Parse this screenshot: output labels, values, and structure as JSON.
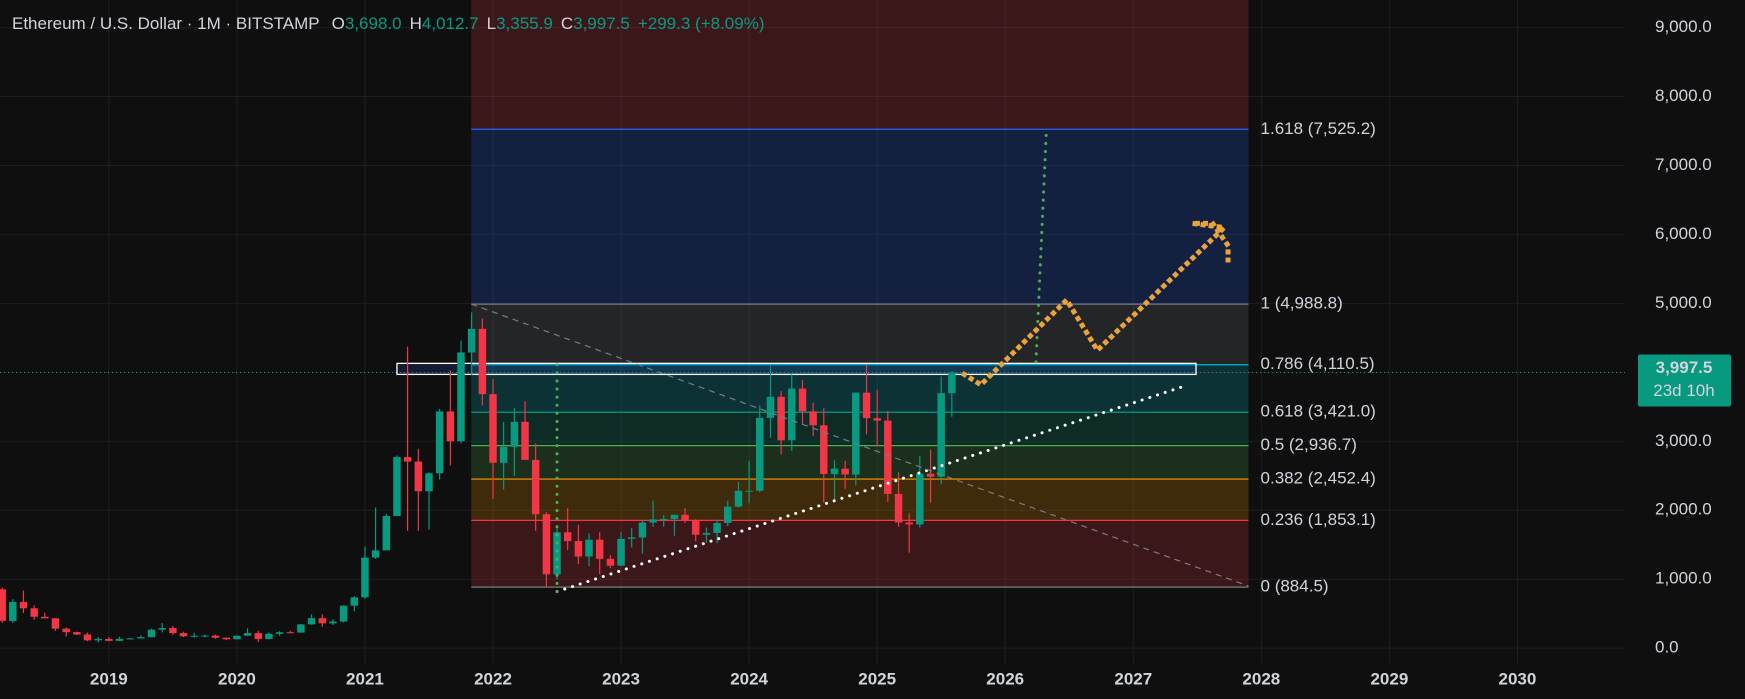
{
  "chart_data": {
    "type": "candlestick",
    "header": {
      "title": "Ethereum / U.S. Dollar · 1M · BITSTAMP",
      "items": [
        {
          "key": "O",
          "value": "3,698.0"
        },
        {
          "key": "H",
          "value": "4,012.7"
        },
        {
          "key": "L",
          "value": "3,355.9"
        },
        {
          "key": "C",
          "value": "3,997.5"
        }
      ],
      "change": "+299.3 (+8.09%)"
    },
    "up_color": "#089981",
    "down_color": "#f23645",
    "x": [
      2018.167,
      2018.25,
      2018.333,
      2018.417,
      2018.5,
      2018.583,
      2018.667,
      2018.75,
      2018.833,
      2018.917,
      2019,
      2019.083,
      2019.167,
      2019.25,
      2019.333,
      2019.417,
      2019.5,
      2019.583,
      2019.667,
      2019.75,
      2019.833,
      2019.917,
      2020,
      2020.083,
      2020.167,
      2020.25,
      2020.333,
      2020.417,
      2020.5,
      2020.583,
      2020.667,
      2020.75,
      2020.833,
      2020.917,
      2021,
      2021.083,
      2021.167,
      2021.25,
      2021.333,
      2021.417,
      2021.5,
      2021.583,
      2021.667,
      2021.75,
      2021.833,
      2021.917,
      2022,
      2022.083,
      2022.167,
      2022.25,
      2022.333,
      2022.417,
      2022.5,
      2022.583,
      2022.667,
      2022.75,
      2022.833,
      2022.917,
      2023,
      2023.083,
      2023.167,
      2023.25,
      2023.333,
      2023.417,
      2023.5,
      2023.583,
      2023.667,
      2023.75,
      2023.833,
      2023.917,
      2024,
      2024.083,
      2024.167,
      2024.25,
      2024.333,
      2024.417,
      2024.5,
      2024.583,
      2024.667,
      2024.75,
      2024.833,
      2024.917,
      2025,
      2025.083,
      2025.167,
      2025.25,
      2025.333,
      2025.417,
      2025.5,
      2025.583
    ],
    "open": [
      853,
      395,
      670,
      578,
      455,
      433,
      283,
      232,
      198,
      113,
      133,
      106,
      135,
      141,
      160,
      268,
      291,
      218,
      172,
      180,
      182,
      151,
      129,
      180,
      218,
      133,
      207,
      231,
      226,
      345,
      435,
      360,
      386,
      616,
      737,
      1313,
      1418,
      1917,
      2771,
      2706,
      2275,
      2536,
      3433,
      3000,
      4288,
      4630,
      3683,
      2688,
      2920,
      3282,
      2730,
      1942,
      1070,
      1680,
      1553,
      1328,
      1573,
      1295,
      1196,
      1585,
      1605,
      1822,
      1868,
      1874,
      1934,
      1857,
      1645,
      1671,
      1815,
      2052,
      2282,
      2283,
      3340,
      3645,
      3015,
      3764,
      3435,
      3232,
      2525,
      2603,
      2518,
      3705,
      3335,
      3300,
      2237,
      1822,
      1794,
      2530,
      2486,
      3698
    ],
    "high": [
      880,
      710,
      835,
      620,
      515,
      435,
      300,
      240,
      225,
      160,
      160,
      166,
      148,
      185,
      285,
      364,
      320,
      239,
      224,
      198,
      195,
      153,
      185,
      288,
      253,
      228,
      246,
      254,
      348,
      490,
      490,
      420,
      620,
      755,
      1475,
      2040,
      1950,
      2795,
      4375,
      2890,
      2550,
      3470,
      4030,
      4460,
      4870,
      4780,
      3900,
      3280,
      3480,
      3580,
      2970,
      1970,
      1780,
      2030,
      1790,
      1665,
      1680,
      1350,
      1680,
      1740,
      1850,
      2140,
      1930,
      1930,
      2030,
      1870,
      1750,
      1865,
      2140,
      2410,
      2720,
      3520,
      4095,
      3730,
      3975,
      3890,
      3560,
      3480,
      2725,
      2720,
      3690,
      4110,
      3745,
      3440,
      2550,
      1955,
      2790,
      2880,
      3940,
      4012.7
    ],
    "low": [
      366,
      366,
      510,
      410,
      430,
      250,
      168,
      190,
      101,
      81,
      100,
      102,
      128,
      140,
      157,
      228,
      190,
      162,
      152,
      155,
      137,
      117,
      125,
      177,
      90,
      127,
      178,
      215,
      224,
      338,
      308,
      335,
      373,
      535,
      715,
      1294,
      1426,
      1935,
      1700,
      1700,
      1718,
      2445,
      2650,
      2970,
      3960,
      3520,
      2160,
      2300,
      2500,
      2780,
      1700,
      880,
      1000,
      1420,
      1220,
      1190,
      1075,
      1160,
      1190,
      1460,
      1370,
      1760,
      1760,
      1630,
      1810,
      1550,
      1530,
      1520,
      1770,
      2040,
      2100,
      2260,
      3050,
      2810,
      2860,
      3240,
      3080,
      2110,
      2150,
      2310,
      2360,
      3100,
      2920,
      2120,
      1760,
      1385,
      1750,
      2110,
      2375,
      3355.9
    ],
    "close": [
      395,
      670,
      578,
      455,
      433,
      283,
      232,
      198,
      113,
      133,
      106,
      135,
      141,
      160,
      268,
      291,
      218,
      172,
      180,
      182,
      151,
      129,
      180,
      218,
      133,
      207,
      231,
      226,
      345,
      435,
      360,
      386,
      616,
      737,
      1313,
      1418,
      1917,
      2771,
      2706,
      2275,
      2536,
      3433,
      3000,
      4288,
      4630,
      3683,
      2688,
      2920,
      3282,
      2730,
      1942,
      1070,
      1680,
      1553,
      1328,
      1573,
      1295,
      1196,
      1585,
      1605,
      1822,
      1868,
      1874,
      1934,
      1857,
      1645,
      1671,
      1815,
      2052,
      2282,
      2283,
      3340,
      3645,
      3015,
      3764,
      3435,
      3232,
      2525,
      2603,
      2518,
      3705,
      3335,
      3300,
      2237,
      1822,
      1794,
      2530,
      2486,
      3698,
      3997.5
    ],
    "xlim": [
      2018.15,
      2030.84
    ],
    "xticks": [
      2019,
      2020,
      2021,
      2022,
      2023,
      2024,
      2025,
      2026,
      2027,
      2028,
      2029,
      2030
    ],
    "ylim": [
      -230,
      9400
    ],
    "yticks": [
      {
        "value": 0,
        "label": "0.0"
      },
      {
        "value": 1000,
        "label": "1,000.0"
      },
      {
        "value": 2000,
        "label": "2,000.0"
      },
      {
        "value": 3000,
        "label": "3,000.0"
      },
      {
        "value": 4000,
        "label": "4,000.0"
      },
      {
        "value": 5000,
        "label": "5,000.0"
      },
      {
        "value": 6000,
        "label": "6,000.0"
      },
      {
        "value": 7000,
        "label": "7,000.0"
      },
      {
        "value": 8000,
        "label": "8,000.0"
      },
      {
        "value": 9000,
        "label": "9,000.0"
      }
    ],
    "grid": true,
    "fib": {
      "xrange": [
        2021.83,
        2027.9
      ],
      "top_color": "#f23645",
      "levels": [
        {
          "ratio": 0,
          "value": 884.5,
          "label": "0 (884.5)",
          "color": "#787b86"
        },
        {
          "ratio": 0.236,
          "value": 1853.1,
          "label": "0.236 (1,853.1)",
          "color": "#f23645"
        },
        {
          "ratio": 0.382,
          "value": 2452.4,
          "label": "0.382 (2,452.4)",
          "color": "#ff9800"
        },
        {
          "ratio": 0.5,
          "value": 2936.7,
          "label": "0.5 (2,936.7)",
          "color": "#4caf50"
        },
        {
          "ratio": 0.618,
          "value": 3421.0,
          "label": "0.618 (3,421.0)",
          "color": "#089981"
        },
        {
          "ratio": 0.786,
          "value": 4110.5,
          "label": "0.786 (4,110.5)",
          "color": "#00bcd4"
        },
        {
          "ratio": 1,
          "value": 4988.8,
          "label": "1 (4,988.8)",
          "color": "#787b86"
        },
        {
          "ratio": 1.618,
          "value": 7525.2,
          "label": "1.618 (7,525.2)",
          "color": "#2962ff"
        }
      ]
    },
    "drawings": [
      {
        "color": "#ffffff",
        "style": "dotted",
        "x": [
          2022.5,
          2027.4
        ],
        "y": [
          820,
          3800
        ]
      },
      {
        "color": "#787b86",
        "style": "dashed",
        "x": [
          2021.83,
          2027.9
        ],
        "y": [
          4990,
          900
        ]
      },
      {
        "color": "#4caf50",
        "style": "dotted",
        "x": [
          2022.5,
          2022.5
        ],
        "y": [
          820,
          4200
        ]
      },
      {
        "color": "#4caf50",
        "style": "dotted",
        "x": [
          2026.24,
          2026.32
        ],
        "y": [
          4150,
          7450
        ]
      },
      {
        "color": "#e8a33d",
        "style": "dotted",
        "x": [
          2025.68,
          2025.81,
          2026.48,
          2026.72,
          2027.71,
          2027.46,
          2027.62,
          2027.74,
          2027.74
        ],
        "y": [
          3970,
          3820,
          5050,
          4320,
          6100,
          6160,
          6160,
          5840,
          5550
        ]
      }
    ],
    "box": {
      "color": "#ffffff",
      "x": [
        2021.25,
        2027.49
      ],
      "y": [
        3970,
        4130
      ]
    },
    "last_price": {
      "value": 3997.5,
      "label": "3,997.5",
      "countdown": "23d 10h",
      "color": "#089981"
    }
  }
}
